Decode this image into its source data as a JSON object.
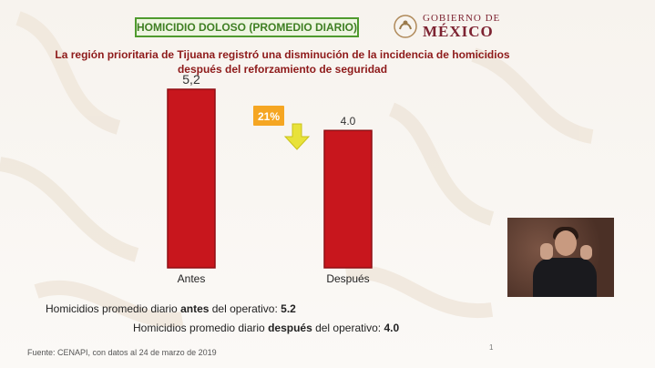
{
  "slide": {
    "title": "HOMICIDIO DOLOSO (PROMEDIO DIARIO)",
    "logo_line1": "GOBIERNO DE",
    "logo_line2": "MÉXICO",
    "headline_line1": "La región prioritaria de Tijuana registró una disminución de la incidencia de homicidios",
    "headline_line2": "después del reforzamiento de seguridad",
    "stat1_prefix": "Homicidios promedio diario ",
    "stat1_bold": "antes",
    "stat1_mid": " del operativo:  ",
    "stat1_value": "5.2",
    "stat2_prefix": "Homicidios promedio diario ",
    "stat2_bold": "después",
    "stat2_mid": " del operativo:  ",
    "stat2_value": "4.0",
    "footer": "Fuente: CENAPI, con datos al 24 de marzo de 2019",
    "page_number": "1"
  },
  "colors": {
    "bar": "#c8161d",
    "bar_edge": "#8f0f14",
    "badge": "#f5a623",
    "arrow": "#e8e23a",
    "title_green": "#4f9a2e",
    "headline_red": "#8e1a1a",
    "logo_maroon": "#7d2331"
  },
  "chart_data": {
    "type": "bar",
    "categories": [
      "Antes",
      "Después"
    ],
    "values": [
      5.2,
      4.0
    ],
    "value_labels": [
      "5,2",
      "4.0"
    ],
    "ylim": [
      0,
      5.2
    ],
    "annotation": {
      "label": "21%",
      "icon": "down-arrow-icon"
    }
  }
}
